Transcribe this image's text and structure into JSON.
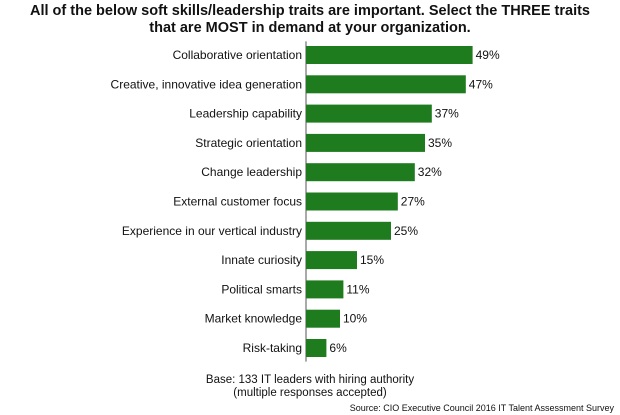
{
  "title_line1": "All of the below soft skills/leadership traits are important. Select the THREE traits",
  "title_line2": "that are MOST in demand at your organization.",
  "base_line1": "Base: 133 IT leaders with hiring authority",
  "base_line2": "(multiple responses accepted)",
  "source": "Source: CIO Executive Council 2016 IT Talent Assessment Survey",
  "bar_color": "#1e7b1e",
  "chart_data": {
    "type": "bar",
    "orientation": "horizontal",
    "title": "All of the below soft skills/leadership traits are important. Select the THREE traits that are MOST in demand at your organization.",
    "categories": [
      "Collaborative orientation",
      "Creative, innovative idea generation",
      "Leadership capability",
      "Strategic orientation",
      "Change leadership",
      "External customer focus",
      "Experience in our vertical industry",
      "Innate curiosity",
      "Political smarts",
      "Market knowledge",
      "Risk-taking"
    ],
    "values": [
      49,
      47,
      37,
      35,
      32,
      27,
      25,
      15,
      11,
      10,
      6
    ],
    "value_labels": [
      "49%",
      "47%",
      "37%",
      "35%",
      "32%",
      "27%",
      "25%",
      "15%",
      "11%",
      "10%",
      "6%"
    ],
    "unit": "%",
    "xlim": [
      0,
      100
    ],
    "grid": false,
    "legend": "none"
  }
}
